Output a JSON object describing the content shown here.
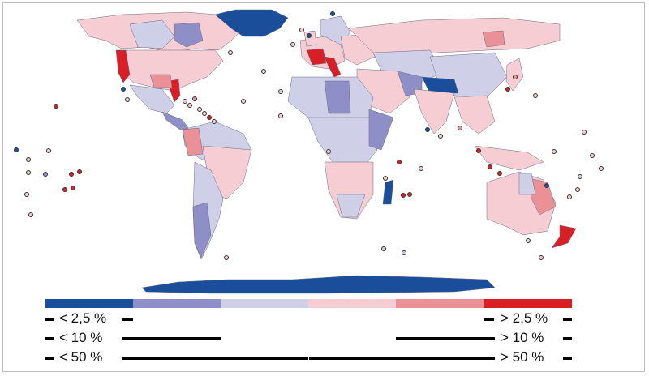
{
  "legend": {
    "colors": [
      "#1a4e9a",
      "#8e8fc6",
      "#cfd0e8",
      "#f6cdd2",
      "#ea9097",
      "#d81f26"
    ],
    "left_labels": [
      "< 2,5 %",
      "< 10 %",
      "< 50 %"
    ],
    "right_labels": [
      "> 2,5 %",
      "> 10 %",
      "> 50 %"
    ]
  },
  "map": {
    "colors": {
      "ocean": "#ffffff",
      "border": "#6a6a8a",
      "strong_blue": "#1a4e9a",
      "mid_blue": "#8e8fc6",
      "light_blue": "#cfd0e8",
      "light_red": "#f6cdd2",
      "mid_red": "#ea9097",
      "strong_red": "#d81f26"
    }
  }
}
